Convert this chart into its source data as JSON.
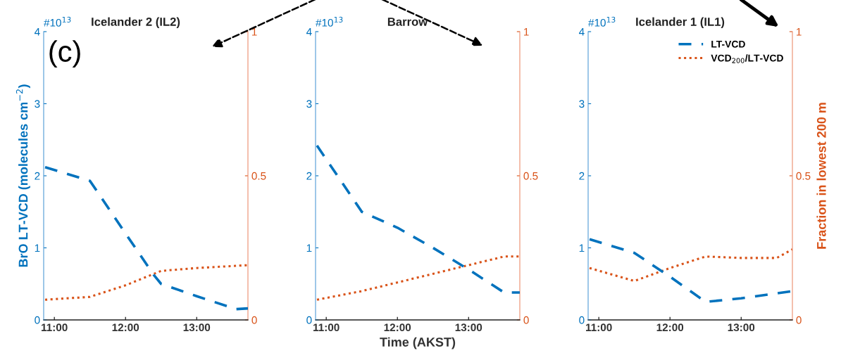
{
  "chart_data": [
    {
      "type": "line",
      "title": "Icelander 2 (IL2)",
      "ylabel": "BrO LT-VCD (molecules cm$^{−2}$)",
      "annotations": [
        "#10$^{13}$",
        "(c)"
      ],
      "xlim": [
        10.85,
        13.72
      ],
      "xticks": [
        {
          "value": 11,
          "label": "11:00"
        },
        {
          "value": 12,
          "label": "12:00"
        },
        {
          "value": 13,
          "label": "13:00"
        }
      ],
      "ylim": [
        0,
        4
      ],
      "yticks": [
        0,
        1,
        2,
        3,
        4
      ],
      "y2lim": [
        0,
        1
      ],
      "y2ticks": [
        0,
        0.5,
        1
      ],
      "legend": false,
      "series": [
        {
          "color": "#0072bd",
          "line_style": "dashed",
          "x": [
            10.87,
            11.5,
            12.0,
            12.4,
            12.5,
            13.0,
            13.55,
            13.72
          ],
          "values": [
            2.12,
            1.93,
            1.2,
            0.62,
            0.5,
            0.33,
            0.15,
            0.16
          ]
        },
        {
          "color": "#d95319",
          "line_style": "dotted",
          "axis": "y2",
          "x": [
            10.87,
            11.5,
            12.0,
            12.5,
            13.0,
            13.72
          ],
          "values": [
            0.07,
            0.08,
            0.12,
            0.17,
            0.18,
            0.19
          ]
        }
      ]
    },
    {
      "type": "line",
      "title": "Barrow",
      "xlabel": "Time (AKST)",
      "annotations": [
        "#10$^{13}$"
      ],
      "xlim": [
        10.85,
        13.72
      ],
      "xticks": [
        {
          "value": 11,
          "label": "11:00"
        },
        {
          "value": 12,
          "label": "12:00"
        },
        {
          "value": 13,
          "label": "13:00"
        }
      ],
      "ylim": [
        0,
        4
      ],
      "yticks": [
        0,
        1,
        2,
        3,
        4
      ],
      "y2lim": [
        0,
        1
      ],
      "y2ticks": [
        0,
        0.5,
        1
      ],
      "legend": false,
      "series": [
        {
          "color": "#0072bd",
          "line_style": "dashed",
          "x": [
            10.87,
            11.5,
            12.0,
            12.5,
            13.0,
            13.5,
            13.72
          ],
          "values": [
            2.42,
            1.5,
            1.28,
            1.0,
            0.7,
            0.38,
            0.38
          ]
        },
        {
          "color": "#d95319",
          "line_style": "dotted",
          "axis": "y2",
          "x": [
            10.87,
            11.5,
            12.0,
            12.5,
            13.0,
            13.5,
            13.72
          ],
          "values": [
            0.07,
            0.1,
            0.13,
            0.16,
            0.19,
            0.22,
            0.22
          ]
        }
      ]
    },
    {
      "type": "line",
      "title": "Icelander 1 (IL1)",
      "y2label": "Fraction in lowest 200 m",
      "annotations": [
        "#10$^{13}$"
      ],
      "xlim": [
        10.85,
        13.72
      ],
      "xticks": [
        {
          "value": 11,
          "label": "11:00"
        },
        {
          "value": 12,
          "label": "12:00"
        },
        {
          "value": 13,
          "label": "13:00"
        }
      ],
      "ylim": [
        0,
        4
      ],
      "yticks": [
        0,
        1,
        2,
        3,
        4
      ],
      "y2lim": [
        0,
        1
      ],
      "y2ticks": [
        0,
        0.5,
        1
      ],
      "legend": "top right",
      "series": [
        {
          "name": "LT-VCD",
          "color": "#0072bd",
          "line_style": "dashed",
          "x": [
            10.87,
            11.5,
            12.0,
            12.5,
            13.0,
            13.72
          ],
          "values": [
            1.12,
            0.93,
            0.6,
            0.25,
            0.3,
            0.4
          ]
        },
        {
          "name": "VCD$_{200}$/LT-VCD",
          "color": "#d95319",
          "line_style": "dotted",
          "axis": "y2",
          "x": [
            10.87,
            11.5,
            12.0,
            12.5,
            13.0,
            13.5,
            13.72
          ],
          "values": [
            0.18,
            0.135,
            0.18,
            0.22,
            0.215,
            0.215,
            0.245
          ]
        }
      ]
    }
  ]
}
